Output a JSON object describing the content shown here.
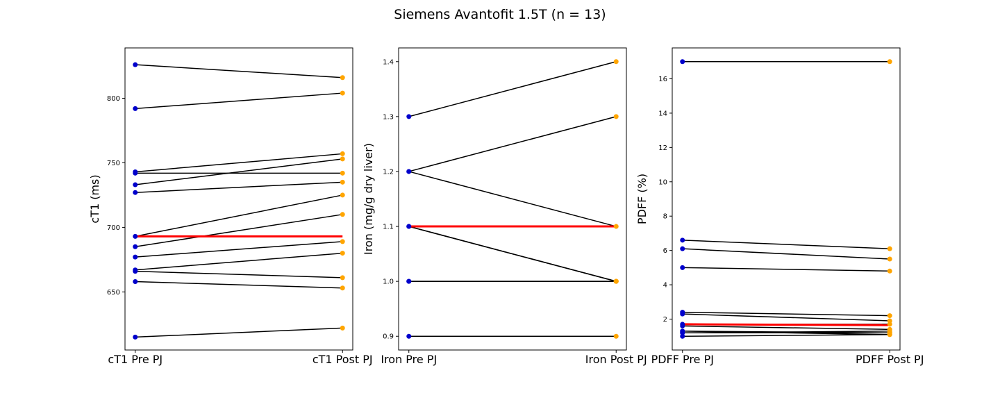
{
  "figure": {
    "title": "Siemens Avantofit 1.5T (n = 13)",
    "colors": {
      "pre": "#0000cc",
      "post": "#ffa500",
      "line": "#000000",
      "mean": "#ff0000"
    }
  },
  "chart_data": [
    {
      "type": "line",
      "xlabel": "",
      "ylabel": "cT1 (ms)",
      "categories": [
        "cT1 Pre PJ",
        "cT1 Post PJ"
      ],
      "ylim": [
        605,
        839
      ],
      "yticks": [
        650,
        700,
        750,
        800
      ],
      "pairs": [
        [
          826,
          816
        ],
        [
          792,
          804
        ],
        [
          743,
          757
        ],
        [
          742,
          742
        ],
        [
          733,
          753
        ],
        [
          727,
          735
        ],
        [
          693,
          725
        ],
        [
          685,
          710
        ],
        [
          677,
          689
        ],
        [
          667,
          680
        ],
        [
          666,
          661
        ],
        [
          658,
          653
        ],
        [
          615,
          622
        ]
      ],
      "mean": [
        693,
        693
      ]
    },
    {
      "type": "line",
      "xlabel": "",
      "ylabel": "Iron (mg/g dry liver)",
      "categories": [
        "Iron Pre PJ",
        "Iron Post PJ"
      ],
      "ylim": [
        0.875,
        1.425
      ],
      "yticks": [
        "0.9",
        "1.0",
        "1.1",
        "1.2",
        "1.3",
        "1.4"
      ],
      "pairs": [
        [
          1.3,
          1.4
        ],
        [
          1.2,
          1.3
        ],
        [
          1.2,
          1.1
        ],
        [
          1.1,
          1.0
        ],
        [
          1.1,
          1.0
        ],
        [
          1.0,
          1.0
        ],
        [
          1.0,
          1.0
        ],
        [
          0.9,
          0.9
        ]
      ],
      "mean": [
        1.1,
        1.1
      ]
    },
    {
      "type": "line",
      "xlabel": "",
      "ylabel": "PDFF (%)",
      "categories": [
        "PDFF Pre PJ",
        "PDFF Post PJ"
      ],
      "ylim": [
        0.2,
        17.8
      ],
      "yticks": [
        2,
        4,
        6,
        8,
        10,
        12,
        14,
        16
      ],
      "pairs": [
        [
          17,
          17
        ],
        [
          6.6,
          6.1
        ],
        [
          6.1,
          5.5
        ],
        [
          5.0,
          4.8
        ],
        [
          2.4,
          2.2
        ],
        [
          2.3,
          1.9
        ],
        [
          1.7,
          1.7
        ],
        [
          1.6,
          1.4
        ],
        [
          1.3,
          1.1
        ],
        [
          1.3,
          1.2
        ],
        [
          1.2,
          1.3
        ],
        [
          1.2,
          1.2
        ],
        [
          1.0,
          1.1
        ]
      ],
      "mean": [
        1.7,
        1.65
      ]
    }
  ]
}
